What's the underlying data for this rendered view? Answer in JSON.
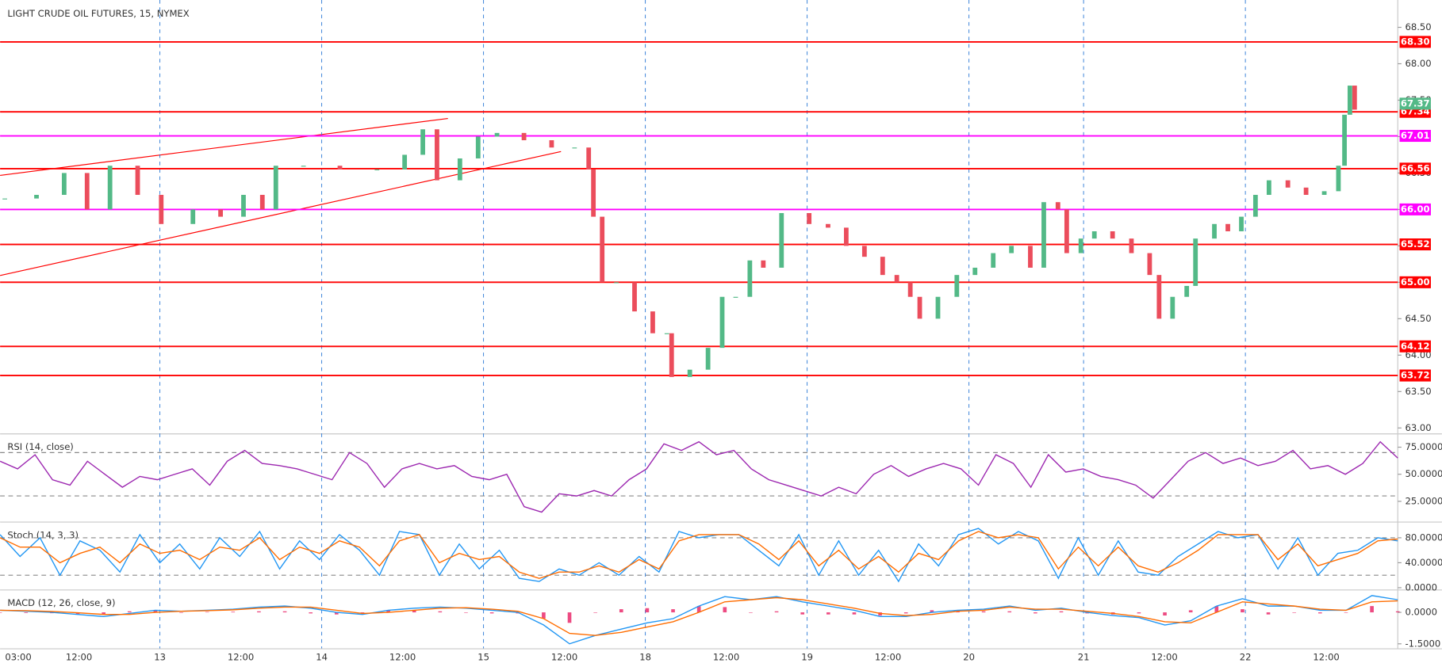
{
  "chart_data": [
    {
      "type": "candlestick",
      "title": "LIGHT CRUDE OIL FUTURES, 15, NYMEX",
      "x": [
        -2,
        2.7,
        6.8,
        10.2,
        13.6,
        17.7,
        21.2,
        25.9,
        30,
        33.4,
        36.2,
        38.2,
        42.3,
        47.7,
        53.2,
        57.3,
        60,
        62.1,
        65.5,
        68.2,
        71,
        75,
        79.1,
        82.5,
        84.6,
        85.3,
        86.6,
        88.7,
        91.4,
        94.1,
        96.2,
        96.9,
        99.6,
        102.3,
        104.4,
        106.4,
        108.5,
        110.5,
        113.2,
        117.3,
        120.1,
        122.8,
        125.5,
        128.2,
        130.3,
        132.3,
        133.7,
        136.4,
        139.2,
        141.9,
        144.6,
        147.3,
        150.1,
        152.1,
        154.2,
        155.5,
        157.6,
        159.6,
        162.3,
        165.1,
        167.8,
        169.2,
        171.2,
        173.3,
        174.6,
        177.4,
        179.4,
        181.4,
        183.5,
        185.5,
        188.3,
        191,
        193.7,
        195.8,
        196.7,
        197.5,
        198.2
      ],
      "close": [
        66.15,
        66.2,
        66.5,
        66.0,
        66.6,
        66.2,
        65.8,
        66.0,
        65.9,
        66.2,
        66.0,
        66.6,
        66.6,
        66.55,
        66.55,
        66.75,
        67.1,
        66.4,
        66.7,
        67.0,
        67.05,
        66.95,
        66.85,
        66.85,
        66.55,
        65.9,
        65.0,
        65.0,
        64.6,
        64.3,
        64.3,
        63.7,
        63.8,
        64.1,
        64.8,
        64.8,
        65.3,
        65.2,
        65.95,
        65.8,
        65.75,
        65.5,
        65.35,
        65.1,
        65.0,
        64.8,
        64.5,
        64.8,
        65.1,
        65.2,
        65.4,
        65.5,
        65.2,
        66.1,
        66.0,
        65.4,
        65.6,
        65.7,
        65.6,
        65.4,
        65.1,
        64.5,
        64.8,
        64.95,
        65.6,
        65.8,
        65.7,
        65.9,
        66.2,
        66.4,
        66.3,
        66.2,
        66.25,
        66.6,
        67.3,
        67.7,
        67.37
      ],
      "up_color": "#53b987",
      "down_color": "#eb4d5c",
      "xlim": [
        -2.7,
        204.6
      ],
      "ylim": [
        62.95,
        68.85
      ],
      "xticks": [
        {
          "value": 0,
          "label": "03:00"
        },
        {
          "value": 9,
          "label": "12:00"
        },
        {
          "value": 21,
          "label": "13"
        },
        {
          "value": 33,
          "label": "12:00"
        },
        {
          "value": 45,
          "label": "14"
        },
        {
          "value": 57,
          "label": "12:00"
        },
        {
          "value": 69,
          "label": "15"
        },
        {
          "value": 81,
          "label": "12:00"
        },
        {
          "value": 93,
          "label": "18"
        },
        {
          "value": 105,
          "label": "12:00"
        },
        {
          "value": 117,
          "label": "19"
        },
        {
          "value": 129,
          "label": "12:00"
        },
        {
          "value": 141,
          "label": "20"
        },
        {
          "value": 158,
          "label": "21"
        },
        {
          "value": 170,
          "label": "12:00"
        },
        {
          "value": 182,
          "label": "22"
        },
        {
          "value": 194,
          "label": "12:00"
        }
      ],
      "yticks": [
        {
          "value": 63,
          "label": "63.00"
        },
        {
          "value": 63.5,
          "label": "63.50"
        },
        {
          "value": 64,
          "label": "64.00"
        },
        {
          "value": 64.5,
          "label": "64.50"
        },
        {
          "value": 65,
          "label": "65.00"
        },
        {
          "value": 65.5,
          "label": "65.50"
        },
        {
          "value": 66,
          "label": "66.00"
        },
        {
          "value": 66.5,
          "label": "66.50"
        },
        {
          "value": 67,
          "label": "67.00"
        },
        {
          "value": 67.5,
          "label": "67.50"
        },
        {
          "value": 68,
          "label": "68.00"
        },
        {
          "value": 68.5,
          "label": "68.50"
        }
      ],
      "levels": [
        {
          "value": 68.3,
          "label": "68.30",
          "color": "#ff0000"
        },
        {
          "value": 67.34,
          "label": "67.34",
          "color": "#ff0000"
        },
        {
          "value": 67.01,
          "label": "67.01",
          "color": "#ff00ff"
        },
        {
          "value": 66.56,
          "label": "66.56",
          "color": "#ff0000"
        },
        {
          "value": 66,
          "label": "66.00",
          "color": "#ff00ff"
        },
        {
          "value": 65.52,
          "label": "65.52",
          "color": "#ff0000"
        },
        {
          "value": 65,
          "label": "65.00",
          "color": "#ff0000"
        },
        {
          "value": 64.12,
          "label": "64.12",
          "color": "#ff0000"
        },
        {
          "value": 63.72,
          "label": "63.72",
          "color": "#ff0000"
        }
      ],
      "last": {
        "value": 67.37,
        "label": "67.37",
        "color": "#53b987"
      }
    },
    {
      "type": "line",
      "title": "RSI (14, close)",
      "ylim": [
        8,
        86
      ],
      "yticks": [
        {
          "value": 25,
          "label": "25.0000"
        },
        {
          "value": 50,
          "label": "50.0000"
        },
        {
          "value": 75,
          "label": "75.0000"
        }
      ],
      "bands": [
        30,
        70
      ],
      "series": [
        {
          "color": "#9c27b0",
          "values": [
            62,
            55,
            68,
            45,
            40,
            62,
            50,
            38,
            48,
            45,
            50,
            55,
            40,
            62,
            72,
            60,
            58,
            55,
            50,
            45,
            70,
            60,
            38,
            55,
            60,
            55,
            58,
            48,
            45,
            50,
            20,
            15,
            32,
            30,
            35,
            30,
            45,
            55,
            78,
            72,
            80,
            68,
            72,
            55,
            45,
            40,
            35,
            30,
            38,
            32,
            50,
            58,
            48,
            55,
            60,
            55,
            40,
            68,
            60,
            38,
            68,
            52,
            55,
            48,
            45,
            40,
            28,
            45,
            62,
            70,
            60,
            65,
            58,
            62,
            72,
            55,
            58,
            50,
            60,
            80,
            65
          ]
        }
      ]
    },
    {
      "type": "line",
      "title": "Stoch (14, 3, 3)",
      "ylim": [
        0,
        103
      ],
      "yticks": [
        {
          "value": 0,
          "label": "0.0000"
        },
        {
          "value": 40,
          "label": "40.0000"
        },
        {
          "value": 80,
          "label": "80.0000"
        }
      ],
      "bands": [
        20,
        80
      ],
      "series": [
        {
          "color": "#2196f3",
          "values": [
            85,
            50,
            80,
            20,
            75,
            60,
            25,
            85,
            40,
            70,
            30,
            80,
            50,
            90,
            30,
            75,
            45,
            85,
            60,
            20,
            90,
            85,
            20,
            70,
            30,
            60,
            15,
            10,
            30,
            20,
            40,
            20,
            50,
            25,
            90,
            80,
            85,
            85,
            60,
            35,
            85,
            20,
            75,
            20,
            60,
            10,
            70,
            35,
            85,
            95,
            70,
            90,
            75,
            15,
            80,
            20,
            75,
            25,
            20,
            50,
            70,
            90,
            80,
            85,
            30,
            80,
            20,
            55,
            60,
            80,
            75
          ]
        },
        {
          "color": "#ff6d00",
          "values": [
            80,
            65,
            65,
            40,
            55,
            65,
            40,
            70,
            55,
            60,
            45,
            65,
            60,
            80,
            45,
            65,
            55,
            75,
            65,
            35,
            75,
            85,
            40,
            55,
            45,
            50,
            25,
            15,
            25,
            25,
            35,
            25,
            45,
            30,
            75,
            85,
            85,
            85,
            70,
            45,
            75,
            35,
            60,
            30,
            50,
            25,
            55,
            45,
            75,
            90,
            80,
            85,
            80,
            30,
            65,
            35,
            65,
            35,
            25,
            40,
            60,
            85,
            85,
            85,
            45,
            70,
            35,
            45,
            55,
            75,
            78
          ]
        }
      ]
    },
    {
      "type": "line",
      "title": "MACD (12, 26, close, 9)",
      "ylim": [
        -1.67,
        1.0
      ],
      "yticks": [
        {
          "value": -1.5,
          "label": "-1.5000"
        },
        {
          "value": 0,
          "label": "0.0000"
        }
      ],
      "series": [
        {
          "type": "bar",
          "color": "#e91e63",
          "values": [
            0,
            -0.03,
            -0.04,
            -0.08,
            -0.1,
            0.05,
            0.1,
            0,
            0.02,
            0.03,
            0.05,
            0.05,
            -0.05,
            -0.1,
            -0.05,
            0.1,
            0.1,
            0.05,
            -0.02,
            -0.05,
            -0.05,
            -0.3,
            -0.5,
            0,
            0.15,
            0.2,
            0.15,
            0.3,
            0.25,
            0,
            0.05,
            -0.1,
            -0.1,
            -0.1,
            -0.15,
            -0.05,
            0.1,
            0.05,
            0.05,
            0.05,
            -0.05,
            0.05,
            -0.05,
            -0.1,
            -0.05,
            -0.15,
            0.1,
            0.3,
            0.15,
            -0.1,
            0,
            -0.05,
            0,
            0.3,
            0.05
          ]
        },
        {
          "color": "#2196f3",
          "values": [
            0.1,
            0.05,
            0,
            -0.1,
            -0.2,
            -0.05,
            0.1,
            0.05,
            0.1,
            0.15,
            0.25,
            0.3,
            0.2,
            0.0,
            -0.1,
            0.1,
            0.2,
            0.25,
            0.2,
            0.1,
            0.0,
            -0.6,
            -1.5,
            -1.1,
            -0.8,
            -0.5,
            -0.3,
            0.3,
            0.75,
            0.6,
            0.75,
            0.5,
            0.3,
            0.1,
            -0.2,
            -0.2,
            0.0,
            0.1,
            0.15,
            0.3,
            0.1,
            0.2,
            0.0,
            -0.15,
            -0.25,
            -0.6,
            -0.4,
            0.3,
            0.65,
            0.3,
            0.3,
            0.1,
            0.1,
            0.8,
            0.6
          ]
        },
        {
          "color": "#ff6d00",
          "values": [
            0.1,
            0.08,
            0.04,
            -0.02,
            -0.1,
            -0.1,
            0.0,
            0.05,
            0.08,
            0.12,
            0.2,
            0.25,
            0.25,
            0.1,
            -0.05,
            0.0,
            0.1,
            0.2,
            0.22,
            0.15,
            0.05,
            -0.3,
            -1.0,
            -1.1,
            -0.95,
            -0.7,
            -0.45,
            0.0,
            0.5,
            0.6,
            0.7,
            0.6,
            0.4,
            0.2,
            -0.05,
            -0.15,
            -0.1,
            0.05,
            0.1,
            0.25,
            0.15,
            0.15,
            0.05,
            -0.05,
            -0.2,
            -0.45,
            -0.5,
            0.0,
            0.5,
            0.4,
            0.3,
            0.15,
            0.1,
            0.5,
            0.55
          ]
        }
      ]
    }
  ]
}
